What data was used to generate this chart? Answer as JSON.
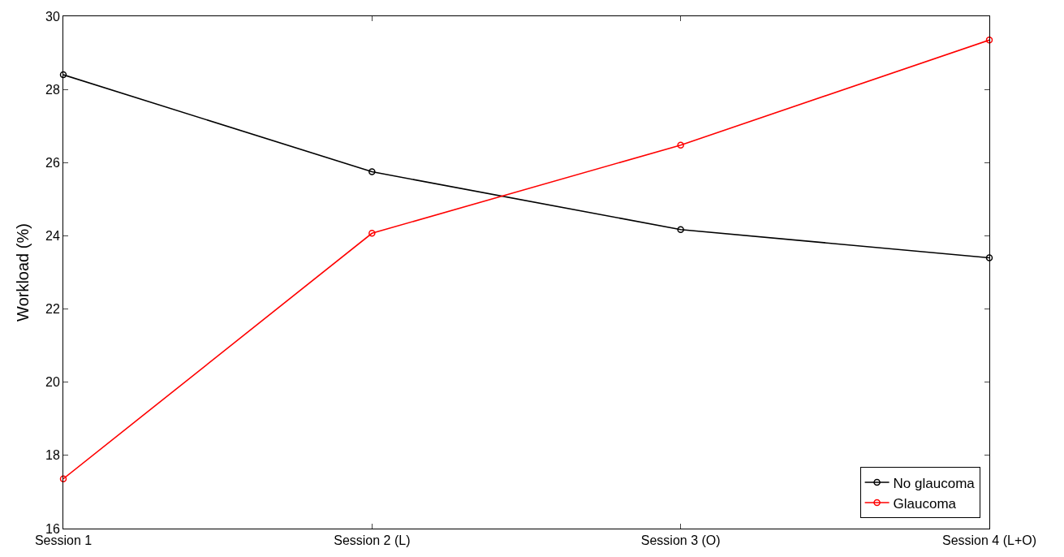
{
  "chart_data": {
    "type": "line",
    "ylabel": "Workload (%)",
    "categories": [
      "Session 1",
      "Session 2 (L)",
      "Session 3 (O)",
      "Session 4 (L+O)"
    ],
    "series": [
      {
        "name": "No glaucoma",
        "color": "#000000",
        "values": [
          28.4,
          25.75,
          24.17,
          23.4
        ]
      },
      {
        "name": "Glaucoma",
        "color": "#ff0000",
        "values": [
          17.36,
          24.07,
          26.48,
          29.35
        ]
      }
    ],
    "ylim": [
      16,
      30
    ],
    "yticks": [
      16,
      18,
      20,
      22,
      24,
      26,
      28,
      30
    ],
    "legend": "bottom right",
    "marker": "circle",
    "line_style": "solid"
  }
}
